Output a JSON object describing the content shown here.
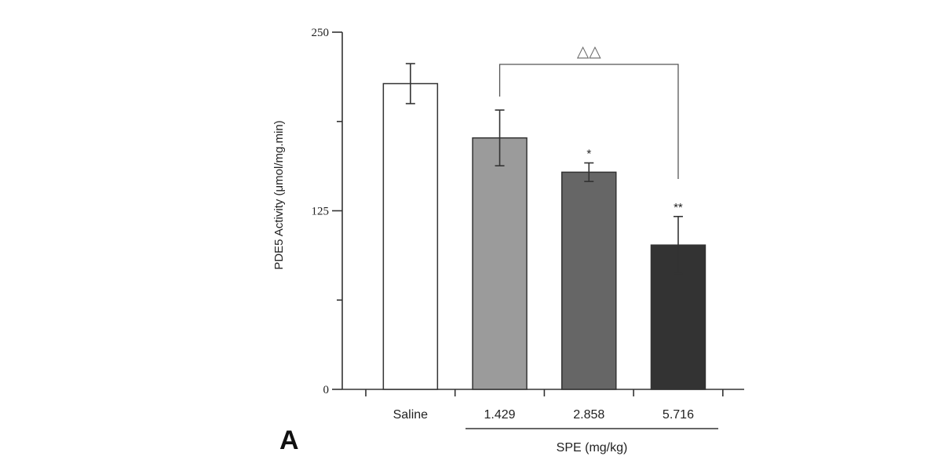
{
  "chart_data": {
    "type": "bar",
    "title": "",
    "panel_label": "A",
    "ylabel": "PDE5 Activity (μmol/mg.min)",
    "xlabel": "SPE (mg/kg)",
    "categories": [
      "Saline",
      "1.429",
      "2.858",
      "5.716"
    ],
    "values": [
      214,
      176,
      152,
      101
    ],
    "errors": [
      14,
      19.5,
      6.5,
      20
    ],
    "bar_colors": [
      "#ffffff",
      "#9b9b9b",
      "#666666",
      "#333333"
    ],
    "ylim": [
      0,
      250
    ],
    "yticks": [
      0,
      125,
      250
    ],
    "ytick_labels": [
      "0",
      "125",
      "250"
    ],
    "minor_yticks": [
      62.5,
      187.5
    ],
    "significance": [
      "",
      "",
      "*",
      "**"
    ],
    "bracket": {
      "from": "1.429",
      "to": "5.716",
      "label": "△△"
    },
    "grid": false
  }
}
